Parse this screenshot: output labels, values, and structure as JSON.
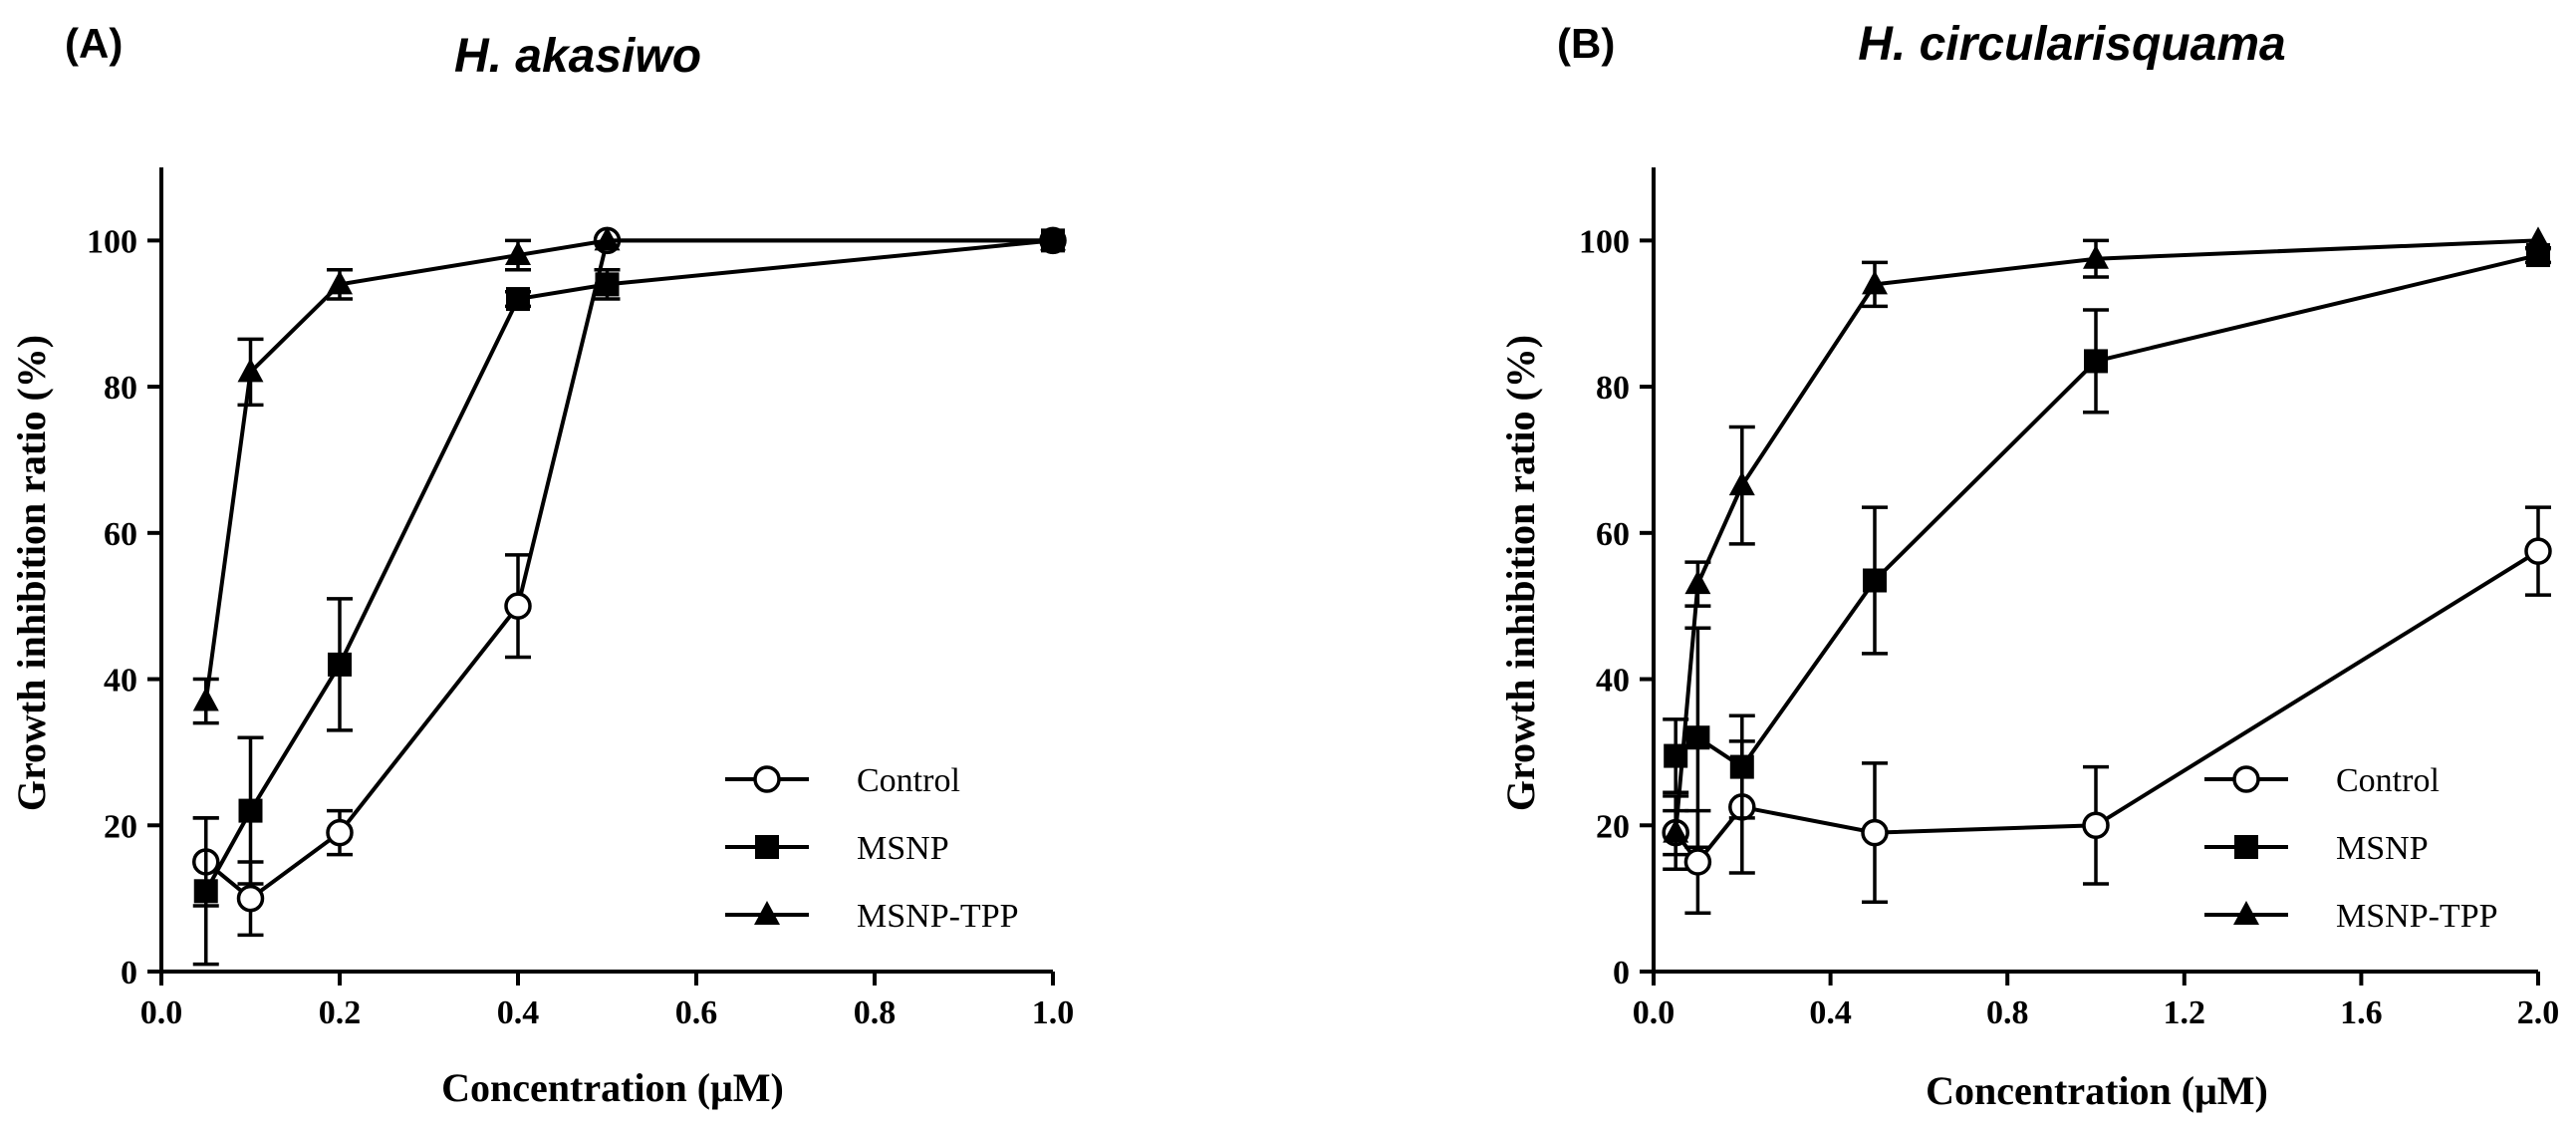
{
  "chart_data": [
    {
      "type": "line",
      "panel_label": "(A)",
      "title": "H. akasiwo",
      "xlabel": "Concentration (μM)",
      "ylabel": "Growth inhibition ratio (%)",
      "xlim": [
        0,
        1.0
      ],
      "ylim": [
        0,
        110
      ],
      "x_ticks": [
        {
          "value": 0,
          "label": "0.0"
        },
        {
          "value": 0.2,
          "label": "0.2"
        },
        {
          "value": 0.4,
          "label": "0.4"
        },
        {
          "value": 0.6,
          "label": "0.6"
        },
        {
          "value": 0.8,
          "label": "0.8"
        },
        {
          "value": 1.0,
          "label": "1.0"
        }
      ],
      "y_ticks": [
        {
          "value": 0,
          "label": "0"
        },
        {
          "value": 20,
          "label": "20"
        },
        {
          "value": 40,
          "label": "40"
        },
        {
          "value": 60,
          "label": "60"
        },
        {
          "value": 80,
          "label": "80"
        },
        {
          "value": 100,
          "label": "100"
        }
      ],
      "grid": false,
      "legend_position": "bottom-right",
      "series": [
        {
          "name": "Control",
          "marker": "open-circle",
          "x": [
            0.05,
            0.1,
            0.2,
            0.4,
            0.5,
            1.0
          ],
          "y": [
            15,
            10,
            19,
            50,
            100,
            100
          ],
          "err": [
            6,
            5,
            3,
            7,
            0,
            0
          ]
        },
        {
          "name": "MSNP",
          "marker": "filled-square",
          "x": [
            0.05,
            0.1,
            0.2,
            0.4,
            0.5,
            1.0
          ],
          "y": [
            11,
            22,
            42,
            92,
            94,
            100
          ],
          "err": [
            10,
            10,
            9,
            1,
            2,
            0
          ]
        },
        {
          "name": "MSNP-TPP",
          "marker": "filled-triangle",
          "x": [
            0.05,
            0.1,
            0.2,
            0.4,
            0.5,
            1.0
          ],
          "y": [
            37,
            82,
            94,
            98,
            100,
            100
          ],
          "err": [
            3,
            4.5,
            2,
            2,
            0,
            0
          ]
        }
      ]
    },
    {
      "type": "line",
      "panel_label": "(B)",
      "title": "H. circularisquama",
      "xlabel": "Concentration (μM)",
      "ylabel": "Growth inhibition ratio (%)",
      "xlim": [
        0,
        2.0
      ],
      "ylim": [
        0,
        110
      ],
      "x_ticks": [
        {
          "value": 0,
          "label": "0.0"
        },
        {
          "value": 0.4,
          "label": "0.4"
        },
        {
          "value": 0.8,
          "label": "0.8"
        },
        {
          "value": 1.2,
          "label": "1.2"
        },
        {
          "value": 1.6,
          "label": "1.6"
        },
        {
          "value": 2.0,
          "label": "2.0"
        }
      ],
      "y_ticks": [
        {
          "value": 0,
          "label": "0"
        },
        {
          "value": 20,
          "label": "20"
        },
        {
          "value": 40,
          "label": "40"
        },
        {
          "value": 60,
          "label": "60"
        },
        {
          "value": 80,
          "label": "80"
        },
        {
          "value": 100,
          "label": "100"
        }
      ],
      "grid": false,
      "legend_position": "bottom-right",
      "series": [
        {
          "name": "Control",
          "marker": "open-circle",
          "x": [
            0.05,
            0.1,
            0.2,
            0.5,
            1.0,
            2.0
          ],
          "y": [
            19,
            15,
            22.5,
            19,
            20,
            57.5
          ],
          "err": [
            5,
            7,
            9,
            9.5,
            8,
            6
          ]
        },
        {
          "name": "MSNP",
          "marker": "filled-square",
          "x": [
            0.05,
            0.1,
            0.2,
            0.5,
            1.0,
            2.0
          ],
          "y": [
            29.5,
            32,
            28,
            53.5,
            83.5,
            98
          ],
          "err": [
            5,
            15,
            7,
            10,
            7,
            1
          ]
        },
        {
          "name": "MSNP-TPP",
          "marker": "filled-triangle",
          "x": [
            0.05,
            0.1,
            0.2,
            0.5,
            1.0,
            2.0
          ],
          "y": [
            19,
            53,
            66.5,
            94,
            97.5,
            100
          ],
          "err": [
            3,
            3,
            8,
            3,
            2.5,
            0
          ]
        }
      ]
    }
  ]
}
